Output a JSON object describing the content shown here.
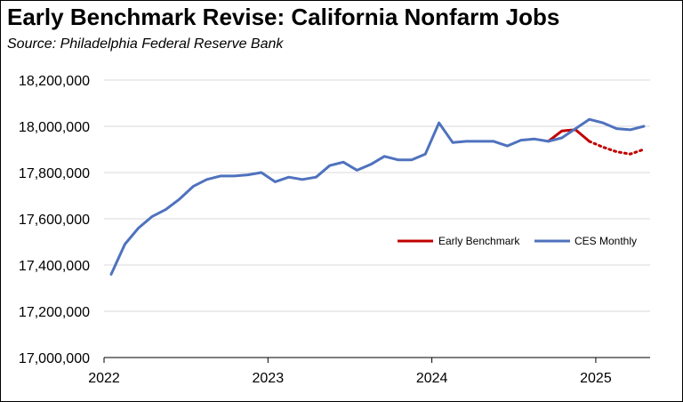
{
  "title": "Early Benchmark Revise:  California Nonfarm Jobs",
  "subtitle": "Source:  Philadelphia Federal Reserve Bank",
  "chart_data": {
    "type": "line",
    "title": "Early Benchmark Revise:  California Nonfarm Jobs",
    "subtitle": "Source:  Philadelphia Federal Reserve Bank",
    "xlabel": "",
    "ylabel": "",
    "ylim": [
      17000000,
      18200000
    ],
    "y_ticks": [
      17000000,
      17200000,
      17400000,
      17600000,
      17800000,
      18000000,
      18200000
    ],
    "y_tick_labels": [
      "17,000,000",
      "17,200,000",
      "17,400,000",
      "17,600,000",
      "17,800,000",
      "18,000,000",
      "18,200,000"
    ],
    "x_tick_labels": [
      "2022",
      "2023",
      "2024",
      "2025"
    ],
    "x_tick_dates": [
      "2022-01",
      "2023-01",
      "2024-01",
      "2025-01"
    ],
    "grid": "horizontal",
    "legend_position": "right, inside plot",
    "series": [
      {
        "name": "CES Monthly",
        "color": "#4f72be",
        "style": "solid",
        "x": [
          "2022-01",
          "2022-02",
          "2022-03",
          "2022-04",
          "2022-05",
          "2022-06",
          "2022-07",
          "2022-08",
          "2022-09",
          "2022-10",
          "2022-11",
          "2022-12",
          "2023-01",
          "2023-02",
          "2023-03",
          "2023-04",
          "2023-05",
          "2023-06",
          "2023-07",
          "2023-08",
          "2023-09",
          "2023-10",
          "2023-11",
          "2023-12",
          "2024-01",
          "2024-02",
          "2024-03",
          "2024-04",
          "2024-05",
          "2024-06",
          "2024-07",
          "2024-08",
          "2024-09",
          "2024-10",
          "2024-11",
          "2024-12",
          "2025-01",
          "2025-02",
          "2025-03",
          "2025-04"
        ],
        "values": [
          17360000,
          17490000,
          17560000,
          17610000,
          17640000,
          17685000,
          17740000,
          17770000,
          17785000,
          17785000,
          17790000,
          17800000,
          17760000,
          17780000,
          17770000,
          17780000,
          17830000,
          17845000,
          17810000,
          17835000,
          17870000,
          17855000,
          17855000,
          17880000,
          18015000,
          17930000,
          17935000,
          17935000,
          17935000,
          17915000,
          17940000,
          17945000,
          17935000,
          17950000,
          17990000,
          18030000,
          18015000,
          17990000,
          17985000,
          18000000
        ]
      },
      {
        "name": "Early Benchmark",
        "color": "#c00000",
        "segments": [
          {
            "style": "solid",
            "x": [
              "2024-09",
              "2024-10",
              "2024-11",
              "2024-12"
            ],
            "values": [
              17935000,
              17980000,
              17985000,
              17935000
            ]
          },
          {
            "style": "dotted",
            "x": [
              "2024-12",
              "2025-01",
              "2025-02",
              "2025-03",
              "2025-04"
            ],
            "values": [
              17935000,
              17910000,
              17890000,
              17880000,
              17900000
            ]
          }
        ]
      }
    ]
  }
}
